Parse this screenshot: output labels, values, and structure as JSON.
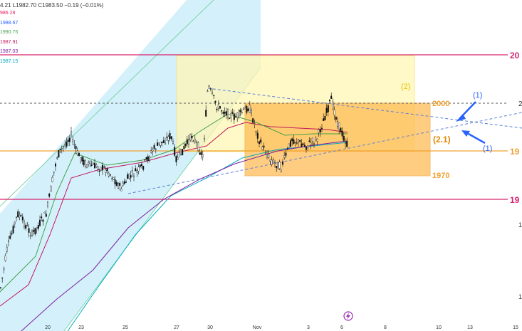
{
  "ohlc_readout": "4.21 L1982.70 C1983.50 −0.19 (−0.01%)",
  "indicators": [
    {
      "label": "986.28",
      "color": "#e91e63"
    },
    {
      "label": "1988.67",
      "color": "#2962ff"
    },
    {
      "label": "1990.75",
      "color": "#43a047"
    },
    {
      "label": "1987.91",
      "color": "#c2185b"
    },
    {
      "label": "1987.03",
      "color": "#7b1fa2"
    },
    {
      "label": "1987.15",
      "color": "#00acc1"
    }
  ],
  "annotations": {
    "wave_2": "(2)",
    "wave_1_top": "(1)",
    "wave_1_bottom": "(1)",
    "wave_2_1": "(2.1)",
    "level_2000": "2000",
    "level_1970": "1970",
    "event_icon": "lightning-icon"
  },
  "right_axis_labels": [
    "20",
    "2",
    "19",
    "19",
    "1",
    "1"
  ],
  "colors": {
    "magenta": "#d6246e",
    "channel_fill": "#c5ecfa",
    "channel_line": "#7fd4a8",
    "yellow_box": "#fff6b5",
    "orange_box": "#ffb84d",
    "orange_text": "#f0a030",
    "blue_annot": "#2962ff"
  },
  "chart_data": {
    "type": "candlestick",
    "x_tick_labels": [
      "20",
      "23",
      "25",
      "27",
      "30",
      "Nov",
      "3",
      "6",
      "8",
      "10",
      "13",
      "15"
    ],
    "horizontal_levels": [
      {
        "value": 2000,
        "label": "2000"
      },
      {
        "value": 1970,
        "label": "1970"
      }
    ],
    "candles_approx": [
      {
        "x": "19",
        "close": 1930
      },
      {
        "x": "20",
        "close": 1965
      },
      {
        "x": "23",
        "close": 1975
      },
      {
        "x": "25",
        "close": 1978
      },
      {
        "x": "27",
        "close": 1985
      },
      {
        "x": "30",
        "close": 2002
      },
      {
        "x": "Nov",
        "close": 1990
      },
      {
        "x": "3",
        "close": 1982
      },
      {
        "x": "6",
        "close": 1983.5
      }
    ]
  }
}
